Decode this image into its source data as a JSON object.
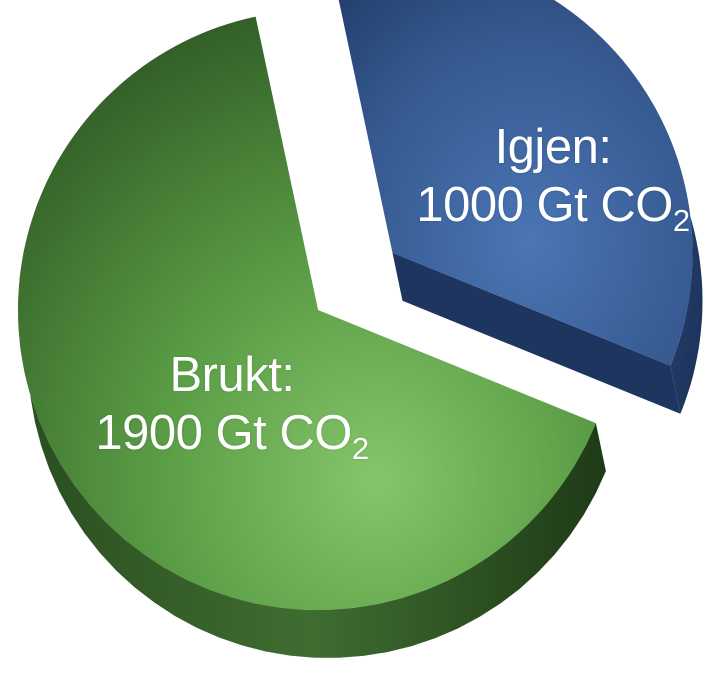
{
  "chart_data": {
    "type": "pie",
    "title": "",
    "three_d": true,
    "exploded": true,
    "slices": [
      {
        "name": "Brukt:",
        "value": 1900,
        "value_label": "1900 Gt CO",
        "unit_subscript": "2",
        "color": "#5fa84b"
      },
      {
        "name": "Igjen:",
        "value": 1000,
        "value_label": "1000 Gt CO",
        "unit_subscript": "2",
        "color": "#3a5f99"
      }
    ]
  }
}
